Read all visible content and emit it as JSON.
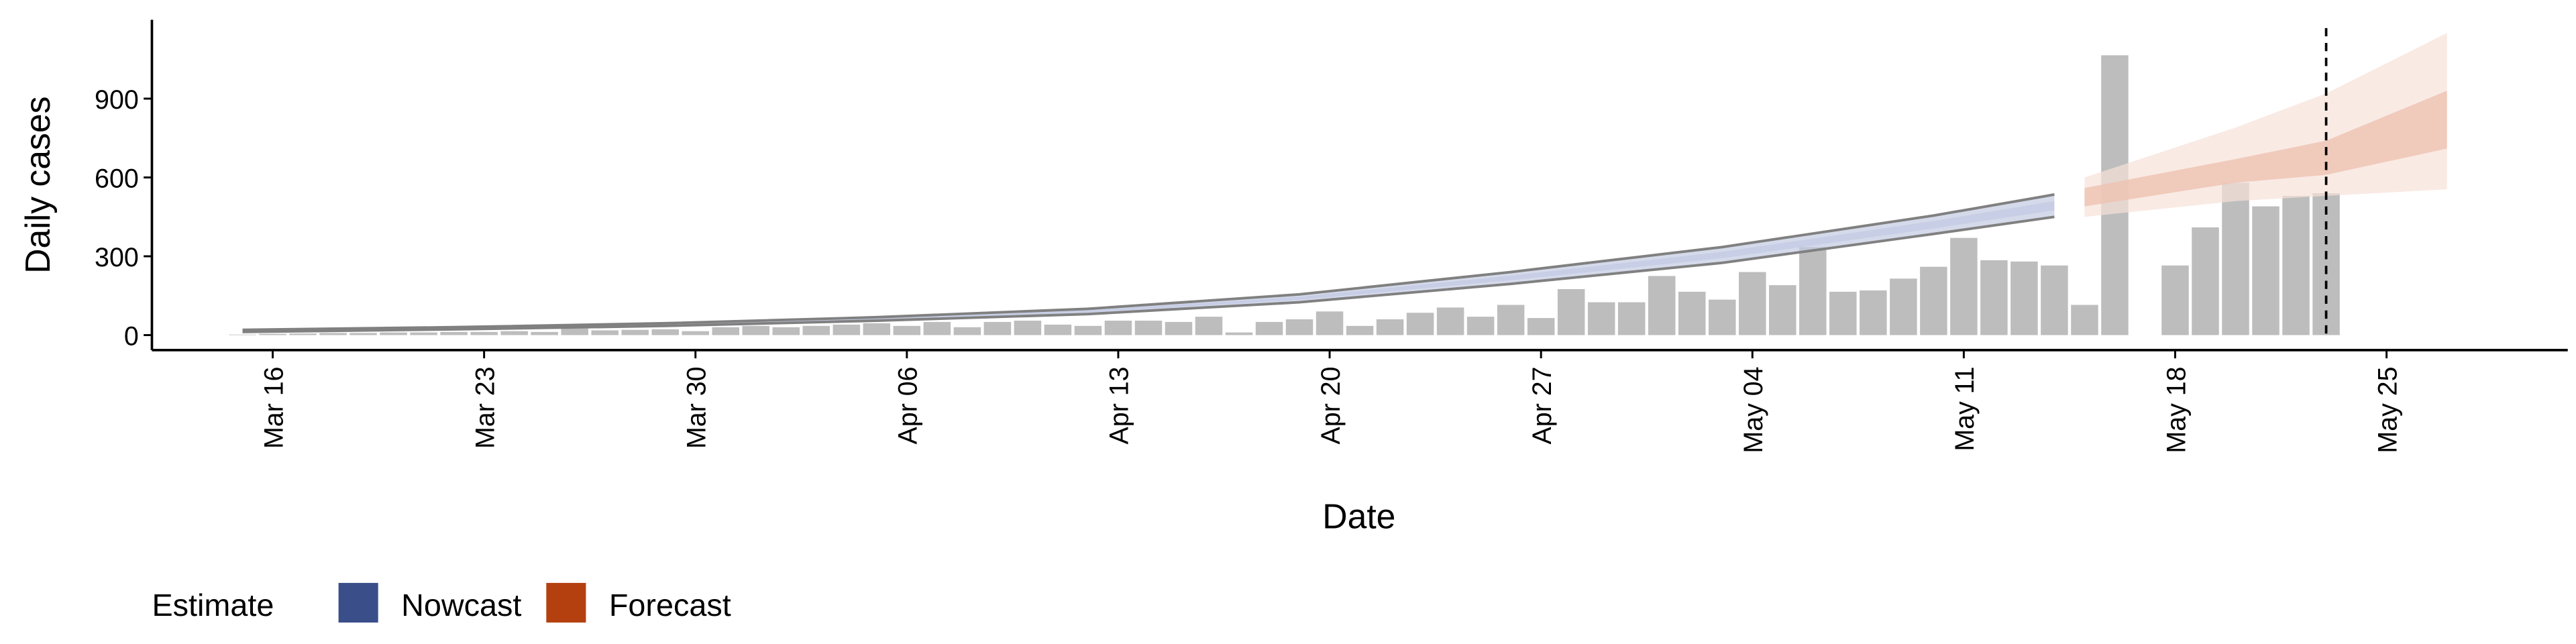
{
  "chart_data": {
    "type": "bar",
    "xlabel": "Date",
    "ylabel": "Daily cases",
    "x": [
      "Mar 15",
      "Mar 16",
      "Mar 17",
      "Mar 18",
      "Mar 19",
      "Mar 20",
      "Mar 21",
      "Mar 22",
      "Mar 23",
      "Mar 24",
      "Mar 25",
      "Mar 26",
      "Mar 27",
      "Mar 28",
      "Mar 29",
      "Mar 30",
      "Mar 31",
      "Apr 01",
      "Apr 02",
      "Apr 03",
      "Apr 04",
      "Apr 05",
      "Apr 06",
      "Apr 07",
      "Apr 08",
      "Apr 09",
      "Apr 10",
      "Apr 11",
      "Apr 12",
      "Apr 13",
      "Apr 14",
      "Apr 15",
      "Apr 16",
      "Apr 17",
      "Apr 18",
      "Apr 19",
      "Apr 20",
      "Apr 21",
      "Apr 22",
      "Apr 23",
      "Apr 24",
      "Apr 25",
      "Apr 26",
      "Apr 27",
      "Apr 28",
      "Apr 29",
      "Apr 30",
      "May 01",
      "May 02",
      "May 03",
      "May 04",
      "May 05",
      "May 06",
      "May 07",
      "May 08",
      "May 09",
      "May 10",
      "May 11",
      "May 12",
      "May 13",
      "May 14",
      "May 15",
      "May 16",
      "May 17",
      "May 18",
      "May 19",
      "May 20",
      "May 21",
      "May 22",
      "May 23"
    ],
    "values": [
      2,
      5,
      6,
      8,
      8,
      10,
      10,
      12,
      12,
      15,
      12,
      25,
      18,
      20,
      22,
      15,
      30,
      35,
      30,
      35,
      40,
      45,
      35,
      50,
      30,
      50,
      55,
      40,
      35,
      55,
      55,
      50,
      70,
      10,
      50,
      60,
      90,
      35,
      60,
      85,
      105,
      70,
      115,
      65,
      175,
      125,
      125,
      225,
      165,
      135,
      240,
      190,
      335,
      165,
      170,
      215,
      260,
      370,
      285,
      280,
      265,
      115,
      1065,
      null,
      265,
      410,
      580,
      490,
      530,
      540
    ],
    "color": "#bdbdbd",
    "xlim": [
      "Mar 12",
      "May 31"
    ],
    "xticks": [
      "Mar 16",
      "Mar 23",
      "Mar 30",
      "Apr 06",
      "Apr 13",
      "Apr 20",
      "Apr 27",
      "May 04",
      "May 11",
      "May 18",
      "May 25"
    ],
    "ylim": [
      -57,
      1200
    ],
    "yticks": [
      0,
      300,
      600,
      900
    ],
    "vline": "May 23",
    "legend_title": "Estimate",
    "legend_position": "bottom-left",
    "bands": [
      {
        "name": "Nowcast",
        "color": "#3a4f8a",
        "fill": "#c3cbe3",
        "edge": "#808080",
        "x": [
          "Mar 15",
          "Mar 22",
          "Mar 29",
          "Apr 05",
          "Apr 12",
          "Apr 19",
          "Apr 26",
          "May 03",
          "May 10",
          "May 14"
        ],
        "upper": [
          20,
          30,
          45,
          68,
          100,
          155,
          240,
          335,
          455,
          535
        ],
        "lower": [
          12,
          22,
          35,
          55,
          80,
          125,
          195,
          275,
          385,
          450
        ],
        "upper_50": [
          18,
          28,
          42,
          64,
          94,
          146,
          226,
          317,
          434,
          510
        ],
        "lower_50": [
          14,
          24,
          38,
          59,
          86,
          134,
          209,
          293,
          406,
          475
        ]
      },
      {
        "name": "Forecast",
        "color": "#b5400f",
        "fill": "#f7e1d9",
        "fill_50": "#eec2b0",
        "x": [
          "May 15",
          "May 20",
          "May 23",
          "May 27"
        ],
        "upper": [
          600,
          790,
          920,
          1150
        ],
        "lower": [
          450,
          510,
          530,
          555
        ],
        "upper_50": [
          560,
          670,
          740,
          930
        ],
        "lower_50": [
          490,
          580,
          610,
          710
        ]
      }
    ]
  }
}
